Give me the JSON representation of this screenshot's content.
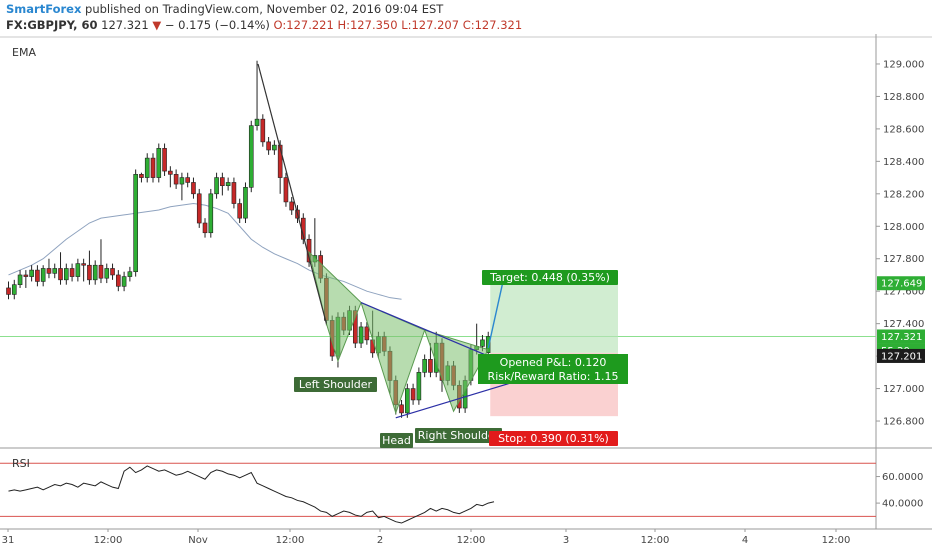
{
  "header": {
    "brand": "SmartForex",
    "published": "published on TradingView.com, November 02, 2016 09:04 EST",
    "symbol": "FX:GBPJPY, 60",
    "price": "127.321",
    "change": "− 0.175 (−0.14%)",
    "open": "O:127.221",
    "high": "H:127.350",
    "low": "L:127.207",
    "close": "C:127.321"
  },
  "colors": {
    "up": "#2eae34",
    "down": "#c62828",
    "ema": "#8fa3bf",
    "accent": "#2a87d0",
    "rsi": "#222222",
    "rsi_level": "#d9534f"
  },
  "chart_data": {
    "type": "candlestick",
    "panes": {
      "price": {
        "indicator_label": "EMA",
        "ylim": [
          126.64,
          129.16
        ],
        "y_ticks": [
          "129.000",
          "128.800",
          "128.600",
          "128.400",
          "128.200",
          "128.000",
          "127.800",
          "127.600",
          "127.400",
          "127.200",
          "127.000",
          "126.800"
        ],
        "price_badges": [
          "127.649",
          "127.321",
          "55:20",
          "127.201"
        ]
      },
      "rsi": {
        "indicator_label": "RSI",
        "ylim": [
          22,
          80
        ],
        "y_ticks": [
          "60.0000",
          "40.0000"
        ],
        "levels": [
          70,
          30
        ]
      }
    },
    "x_ticks": [
      "31",
      "12:00",
      "Nov",
      "12:00",
      "2",
      "12:00",
      "3",
      "12:00",
      "4",
      "12:00"
    ],
    "candles": [
      [
        127.62,
        127.58,
        127.66,
        127.55
      ],
      [
        127.58,
        127.64,
        127.67,
        127.55
      ],
      [
        127.64,
        127.7,
        127.73,
        127.62
      ],
      [
        127.7,
        127.69,
        127.73,
        127.62
      ],
      [
        127.69,
        127.73,
        127.76,
        127.66
      ],
      [
        127.73,
        127.66,
        127.76,
        127.63
      ],
      [
        127.66,
        127.74,
        127.76,
        127.63
      ],
      [
        127.74,
        127.71,
        127.8,
        127.68
      ],
      [
        127.71,
        127.74,
        127.77,
        127.68
      ],
      [
        127.74,
        127.67,
        127.84,
        127.64
      ],
      [
        127.67,
        127.74,
        127.77,
        127.64
      ],
      [
        127.74,
        127.69,
        127.77,
        127.66
      ],
      [
        127.69,
        127.77,
        127.8,
        127.66
      ],
      [
        127.77,
        127.76,
        127.8,
        127.66
      ],
      [
        127.76,
        127.67,
        127.85,
        127.64
      ],
      [
        127.67,
        127.76,
        127.79,
        127.64
      ],
      [
        127.76,
        127.68,
        127.92,
        127.65
      ],
      [
        127.68,
        127.74,
        127.77,
        127.65
      ],
      [
        127.74,
        127.7,
        127.77,
        127.67
      ],
      [
        127.7,
        127.63,
        127.73,
        127.6
      ],
      [
        127.63,
        127.69,
        127.72,
        127.6
      ],
      [
        127.69,
        127.72,
        127.75,
        127.66
      ],
      [
        127.72,
        128.32,
        128.35,
        127.69
      ],
      [
        128.32,
        128.3,
        128.33,
        128.27
      ],
      [
        128.3,
        128.42,
        128.45,
        128.27
      ],
      [
        128.42,
        128.3,
        128.45,
        128.27
      ],
      [
        128.3,
        128.48,
        128.51,
        128.27
      ],
      [
        128.48,
        128.34,
        128.51,
        128.31
      ],
      [
        128.34,
        128.32,
        128.37,
        128.24
      ],
      [
        128.32,
        128.26,
        128.35,
        128.23
      ],
      [
        128.26,
        128.3,
        128.33,
        128.16
      ],
      [
        128.3,
        128.27,
        128.33,
        128.24
      ],
      [
        128.27,
        128.2,
        128.3,
        128.17
      ],
      [
        128.2,
        128.02,
        128.23,
        127.99
      ],
      [
        128.02,
        127.96,
        128.05,
        127.93
      ],
      [
        127.96,
        128.2,
        128.23,
        127.93
      ],
      [
        128.2,
        128.3,
        128.33,
        128.17
      ],
      [
        128.3,
        128.25,
        128.33,
        128.19
      ],
      [
        128.25,
        128.27,
        128.3,
        128.22
      ],
      [
        128.27,
        128.14,
        128.3,
        128.11
      ],
      [
        128.14,
        128.05,
        128.17,
        128.02
      ],
      [
        128.05,
        128.24,
        128.27,
        128.02
      ],
      [
        128.24,
        128.62,
        128.65,
        128.21
      ],
      [
        128.62,
        128.66,
        129.02,
        128.59
      ],
      [
        128.66,
        128.52,
        128.69,
        128.49
      ],
      [
        128.52,
        128.47,
        128.55,
        128.44
      ],
      [
        128.47,
        128.5,
        128.53,
        128.44
      ],
      [
        128.5,
        128.3,
        128.53,
        128.2
      ],
      [
        128.3,
        128.15,
        128.33,
        128.12
      ],
      [
        128.15,
        128.1,
        128.18,
        128.07
      ],
      [
        128.1,
        128.05,
        128.13,
        128.02
      ],
      [
        128.05,
        127.92,
        128.08,
        127.89
      ],
      [
        127.92,
        127.78,
        127.95,
        127.75
      ],
      [
        127.78,
        127.82,
        128.05,
        127.75
      ],
      [
        127.82,
        127.68,
        127.85,
        127.65
      ],
      [
        127.68,
        127.42,
        127.71,
        127.39
      ],
      [
        127.42,
        127.2,
        127.45,
        127.17
      ],
      [
        127.2,
        127.44,
        127.47,
        127.13
      ],
      [
        127.44,
        127.36,
        127.47,
        127.33
      ],
      [
        127.36,
        127.48,
        127.51,
        127.33
      ],
      [
        127.48,
        127.28,
        127.51,
        127.25
      ],
      [
        127.28,
        127.38,
        127.41,
        127.25
      ],
      [
        127.38,
        127.3,
        127.41,
        127.27
      ],
      [
        127.3,
        127.22,
        127.48,
        127.19
      ],
      [
        127.22,
        127.32,
        127.35,
        127.19
      ],
      [
        127.32,
        127.23,
        127.35,
        127.2
      ],
      [
        127.23,
        127.05,
        127.26,
        126.97
      ],
      [
        127.05,
        126.9,
        127.08,
        126.84
      ],
      [
        126.9,
        126.85,
        126.93,
        126.82
      ],
      [
        126.85,
        127.0,
        127.03,
        126.82
      ],
      [
        127.0,
        126.93,
        127.03,
        126.9
      ],
      [
        126.93,
        127.1,
        127.13,
        126.9
      ],
      [
        127.1,
        127.18,
        127.21,
        127.07
      ],
      [
        127.18,
        127.1,
        127.28,
        127.07
      ],
      [
        127.1,
        127.28,
        127.35,
        127.07
      ],
      [
        127.28,
        127.05,
        127.31,
        126.98
      ],
      [
        127.05,
        127.14,
        127.17,
        127.02
      ],
      [
        127.14,
        127.02,
        127.17,
        126.99
      ],
      [
        127.02,
        126.88,
        127.05,
        126.85
      ],
      [
        126.88,
        127.05,
        127.08,
        126.85
      ],
      [
        127.05,
        127.24,
        127.27,
        127.02
      ],
      [
        127.24,
        127.26,
        127.4,
        127.21
      ],
      [
        127.26,
        127.3,
        127.33,
        127.23
      ],
      [
        127.221,
        127.321,
        127.35,
        127.207
      ]
    ],
    "ema": [
      127.7,
      127.73,
      127.76,
      127.8,
      127.86,
      127.92,
      127.97,
      128.02,
      128.05,
      128.06,
      128.07,
      128.08,
      128.09,
      128.1,
      128.12,
      128.13,
      128.14,
      128.13,
      128.11,
      128.08,
      128.0,
      127.92,
      127.87,
      127.83,
      127.8,
      127.77,
      127.73,
      127.7,
      127.68,
      127.66,
      127.63,
      127.6,
      127.58,
      127.56,
      127.55
    ],
    "rsi": [
      49,
      50,
      49,
      50,
      51,
      52,
      50,
      52,
      54,
      53,
      55,
      54,
      52,
      55,
      54,
      53,
      56,
      54,
      52,
      51,
      64,
      67,
      63,
      65,
      68,
      66,
      64,
      65,
      63,
      61,
      62,
      64,
      62,
      60,
      58,
      63,
      65,
      64,
      62,
      61,
      59,
      61,
      63,
      55,
      53,
      51,
      49,
      47,
      45,
      44,
      42,
      41,
      39,
      37,
      34,
      33,
      30,
      32,
      34,
      33,
      31,
      30,
      33,
      34,
      29,
      30,
      28,
      26,
      25,
      27,
      29,
      31,
      33,
      36,
      34,
      36,
      35,
      33,
      32,
      34,
      36,
      39,
      38,
      40,
      41
    ],
    "annotations": {
      "shoulder_left": "Left Shoulder",
      "head": "Head",
      "shoulder_right": "Right Shoulder",
      "target": "Target: 0.448 (0.35%)",
      "opened_pl": "Opened P&L: 0.120",
      "risk_reward": "Risk/Reward Ratio: 1.15",
      "stop": "Stop: 0.390 (0.31%)"
    }
  }
}
